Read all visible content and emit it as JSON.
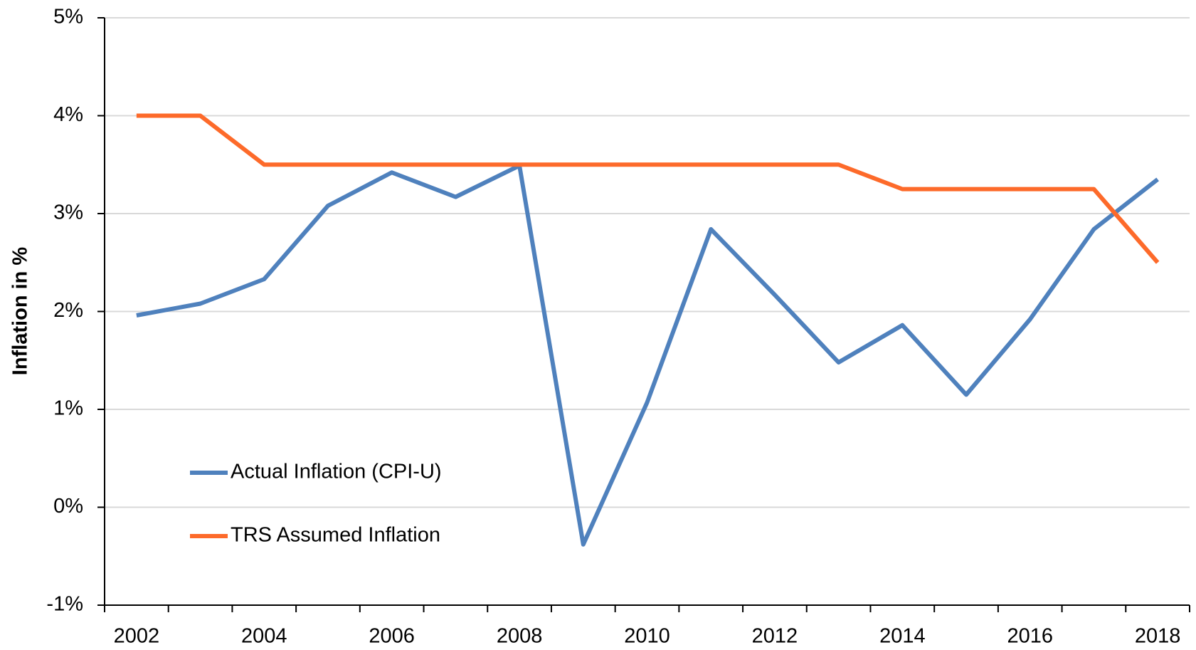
{
  "chart_data": {
    "type": "line",
    "y_label": "Inflation in %",
    "categories": [
      "2002",
      null,
      "2004",
      null,
      "2006",
      null,
      "2008",
      null,
      "2010",
      null,
      "2012",
      null,
      "2014",
      null,
      "2016",
      null,
      "2018"
    ],
    "series": [
      {
        "name": "Actual Inflation (CPI-U)",
        "color": "#4f81bd",
        "values": [
          1.96,
          2.08,
          2.33,
          3.08,
          3.42,
          3.17,
          3.49,
          -0.38,
          1.07,
          2.84,
          2.17,
          1.48,
          1.86,
          1.15,
          1.92,
          2.84,
          3.35
        ]
      },
      {
        "name": "TRS Assumed Inflation",
        "color": "#fd6a2a",
        "values": [
          4,
          4,
          3.5,
          3.5,
          3.5,
          3.5,
          3.5,
          3.5,
          3.5,
          3.5,
          3.5,
          3.5,
          3.25,
          3.25,
          3.25,
          3.25,
          2.5
        ]
      }
    ],
    "ylim": [
      -1,
      5
    ],
    "yticks": [
      {
        "value": -1,
        "label": "-1%"
      },
      {
        "value": 0,
        "label": "0%"
      },
      {
        "value": 1,
        "label": "1%"
      },
      {
        "value": 2,
        "label": "2%"
      },
      {
        "value": 3,
        "label": "3%"
      },
      {
        "value": 4,
        "label": "4%"
      },
      {
        "value": 5,
        "label": "5%"
      }
    ],
    "grid": true,
    "legend": "lower-left"
  }
}
